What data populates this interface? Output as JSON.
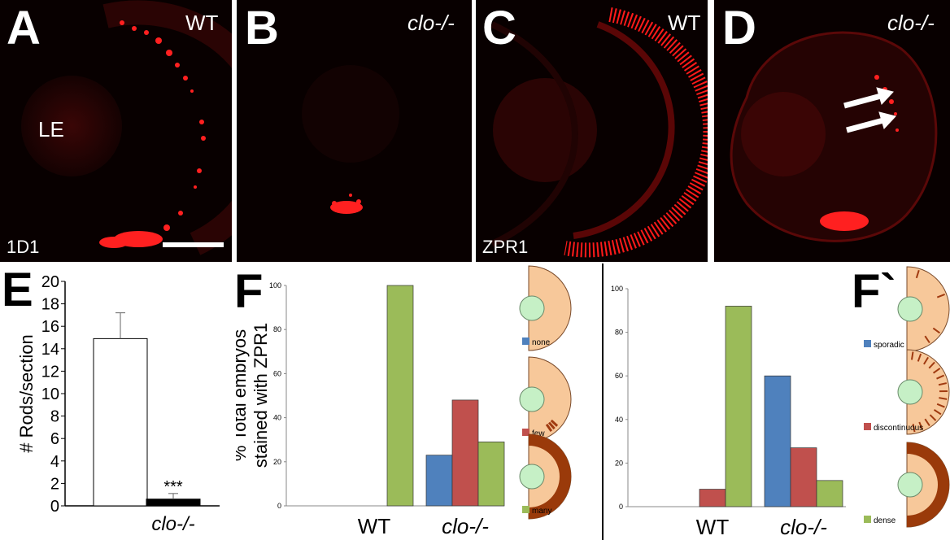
{
  "panels": {
    "A": {
      "letter": "A",
      "genotype": "WT",
      "marker": "1D1",
      "structure": "LE"
    },
    "B": {
      "letter": "B",
      "genotype": "clo-/-"
    },
    "C": {
      "letter": "C",
      "genotype": "WT",
      "marker": "ZPR1"
    },
    "D": {
      "letter": "D",
      "genotype": "clo-/-"
    }
  },
  "panel_E": {
    "letter": "E"
  },
  "panel_F": {
    "letter": "F"
  },
  "panel_F2": {
    "letter": "F`"
  },
  "colors": {
    "none": "#4f81bd",
    "few": "#c0504d",
    "many": "#9bbb59",
    "background_red": "#e8181a"
  },
  "chart_data": [
    {
      "type": "bar",
      "panel": "E",
      "categories": [
        "",
        "clo-/-"
      ],
      "values": [
        14.9,
        0.6
      ],
      "errors": [
        2.3,
        0.5
      ],
      "ylabel": "# Rods/section",
      "ylim": [
        0,
        20
      ],
      "yticks": [
        0,
        2,
        4,
        6,
        8,
        10,
        12,
        14,
        16,
        18,
        20
      ],
      "annotation": "***",
      "bar_colors": [
        "#ffffff",
        "#000000"
      ]
    },
    {
      "type": "bar",
      "panel": "F",
      "ylabel": "% Total embryos stained with ZPR1",
      "categories": [
        "WT",
        "clo-/-"
      ],
      "ylim": [
        0,
        100
      ],
      "yticks": [
        0,
        20,
        40,
        60,
        80,
        100
      ],
      "series": [
        {
          "name": "none",
          "values": [
            0,
            23
          ]
        },
        {
          "name": "few",
          "values": [
            0,
            48
          ]
        },
        {
          "name": "many",
          "values": [
            100,
            29
          ]
        }
      ],
      "legend": [
        "none",
        "few",
        "many"
      ]
    },
    {
      "type": "bar",
      "panel": "F`",
      "categories": [
        "WT",
        "clo-/-"
      ],
      "ylim": [
        0,
        100
      ],
      "yticks": [
        0,
        20,
        40,
        60,
        80,
        100
      ],
      "series": [
        {
          "name": "sporadic",
          "values": [
            0,
            60
          ]
        },
        {
          "name": "discontinuous",
          "values": [
            8,
            27
          ]
        },
        {
          "name": "dense",
          "values": [
            92,
            12
          ]
        }
      ],
      "legend": [
        "sporadic",
        "discontinuous",
        "dense"
      ]
    }
  ]
}
